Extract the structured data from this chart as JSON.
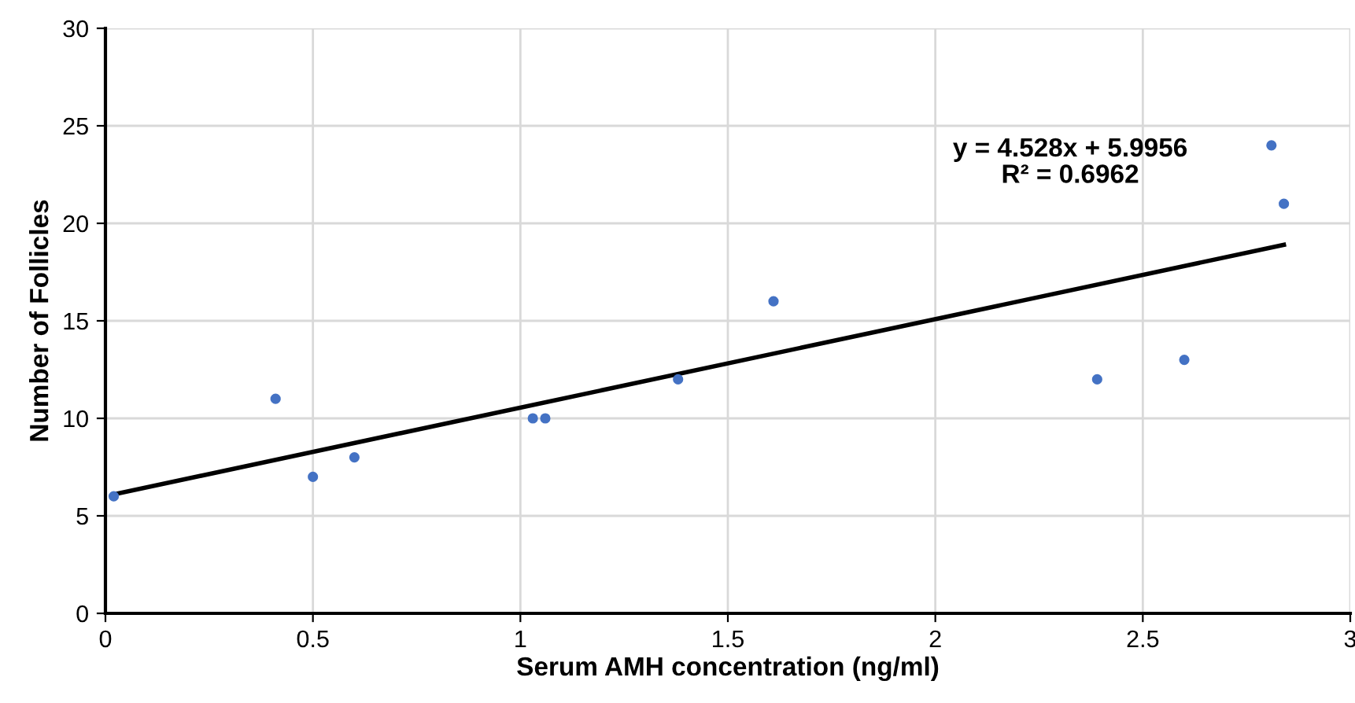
{
  "chart_data": {
    "type": "scatter",
    "xlabel": "Serum AMH concentration (ng/ml)",
    "ylabel": "Number of Follicles",
    "series": [
      {
        "color": "#4472c4",
        "marker": "circle",
        "x": [
          0.02,
          0.41,
          0.5,
          0.6,
          1.03,
          1.06,
          1.38,
          1.61,
          2.39,
          2.6,
          2.81,
          2.84
        ],
        "values": [
          6,
          11,
          7,
          8,
          10,
          10,
          12,
          16,
          12,
          13,
          24,
          21
        ]
      },
      {
        "type": "line",
        "color": "#000000",
        "marker": "none",
        "line_style": "solid",
        "x": [
          0.02,
          2.84
        ],
        "values": [
          6.1,
          18.9
        ]
      }
    ],
    "annotations": [
      "y = 4.528x + 5.9956\nR² = 0.6962"
    ],
    "xlim": [
      0,
      3
    ],
    "xticks": [
      0,
      0.5,
      1,
      1.5,
      2,
      2.5,
      3
    ],
    "ylim": [
      0,
      30
    ],
    "yticks": [
      0,
      5,
      10,
      15,
      20,
      25,
      30
    ],
    "grid": true,
    "legend": false
  }
}
